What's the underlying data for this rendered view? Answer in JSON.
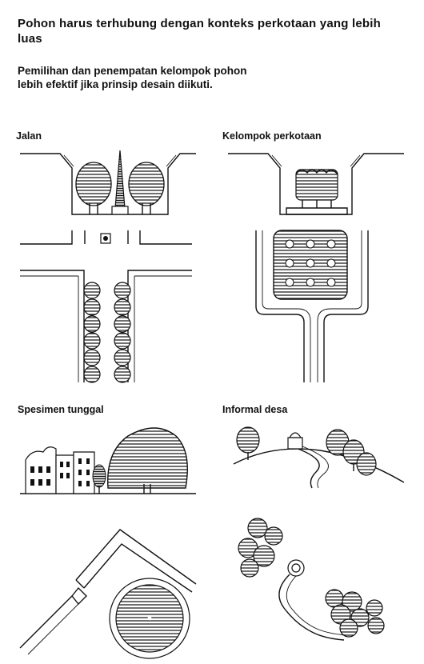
{
  "title": "Pohon harus terhubung dengan konteks perkotaan yang lebih luas",
  "subtitle": "Pemilihan dan penempatan kelompok pohon lebih efektif jika prinsip desain diikuti.",
  "panels": {
    "street": {
      "label": "Jalan"
    },
    "urban_group": {
      "label": "Kelompok perkotaan"
    },
    "single_specimen": {
      "label": "Spesimen tunggal"
    },
    "informal_village": {
      "label": "Informal desa"
    }
  }
}
